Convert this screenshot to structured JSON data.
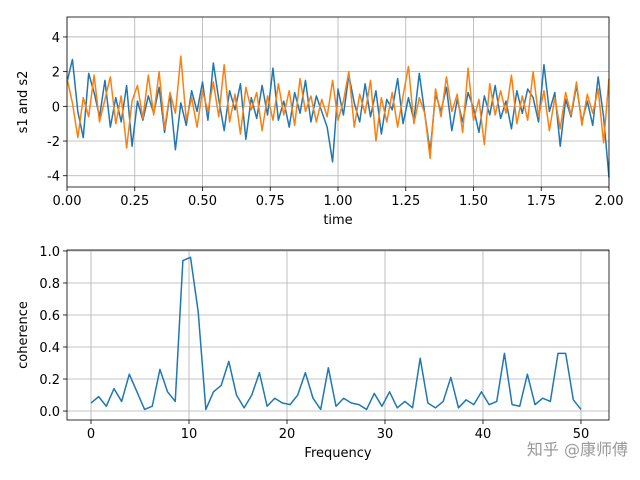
{
  "chart_data": [
    {
      "type": "line",
      "x": [
        0,
        0.02,
        0.04,
        0.06,
        0.08,
        0.1,
        0.12,
        0.14,
        0.16,
        0.18,
        0.2,
        0.22,
        0.24,
        0.26,
        0.28,
        0.3,
        0.32,
        0.34,
        0.36,
        0.38,
        0.4,
        0.42,
        0.44,
        0.46,
        0.48,
        0.5,
        0.52,
        0.54,
        0.56,
        0.58,
        0.6,
        0.62,
        0.64,
        0.66,
        0.68,
        0.7,
        0.72,
        0.74,
        0.76,
        0.78,
        0.8,
        0.82,
        0.84,
        0.86,
        0.88,
        0.9,
        0.92,
        0.94,
        0.96,
        0.98,
        1,
        1.02,
        1.04,
        1.06,
        1.08,
        1.1,
        1.12,
        1.14,
        1.16,
        1.18,
        1.2,
        1.22,
        1.24,
        1.26,
        1.28,
        1.3,
        1.32,
        1.34,
        1.36,
        1.38,
        1.4,
        1.42,
        1.44,
        1.46,
        1.48,
        1.5,
        1.52,
        1.54,
        1.56,
        1.58,
        1.6,
        1.62,
        1.64,
        1.66,
        1.68,
        1.7,
        1.72,
        1.74,
        1.76,
        1.78,
        1.8,
        1.82,
        1.84,
        1.86,
        1.88,
        1.9,
        1.92,
        1.94,
        1.96,
        1.98,
        2
      ],
      "series": [
        {
          "color": "#1f77b4",
          "values": [
            1.4,
            2.7,
            -0.3,
            -1.8,
            1.9,
            0.8,
            -0.6,
            1.5,
            -1.2,
            0.5,
            -0.9,
            1.2,
            -2.3,
            0.3,
            -0.8,
            0.6,
            -0.4,
            1.1,
            -1.5,
            0.7,
            -2.5,
            0.2,
            -1.1,
            0.9,
            -0.3,
            1.4,
            -0.8,
            2.5,
            0.4,
            -1.4,
            0.9,
            -0.2,
            1.3,
            -1.9,
            0.5,
            -0.7,
            1.2,
            -0.5,
            2.2,
            -0.8,
            0.3,
            -1.2,
            0.8,
            -0.4,
            1.5,
            -0.9,
            0.6,
            -0.3,
            -1.2,
            -3.2,
            1.0,
            -0.5,
            1.8,
            0.2,
            -0.9,
            1.3,
            -0.6,
            0.9,
            -1.6,
            0.4,
            -0.2,
            1.6,
            -1.0,
            0.5,
            -0.8,
            1.9,
            -0.4,
            -2.6,
            0.7,
            -0.3,
            1.1,
            -1.4,
            0.4,
            -0.9,
            0.8,
            -0.1,
            -1.5,
            0.6,
            -0.5,
            1.2,
            -0.7,
            0.3,
            -1.3,
            0.9,
            -0.4,
            1.0,
            0.5,
            -0.9,
            2.4,
            -0.3,
            0.8,
            -2.3,
            0.4,
            -0.6,
            1.2,
            -0.9,
            0.3,
            -1.1,
            1.7,
            -0.6,
            -4.1
          ]
        },
        {
          "color": "#ff7f0e",
          "values": [
            1.6,
            0.2,
            -1.8,
            0.5,
            -0.6,
            1.8,
            -0.9,
            0.4,
            1.7,
            -1.0,
            0.6,
            -2.4,
            0.3,
            1.2,
            -0.7,
            1.8,
            -0.5,
            2.0,
            -1.3,
            0.8,
            -0.4,
            2.9,
            -0.8,
            0.5,
            -1.2,
            0.9,
            -0.3,
            1.4,
            -0.6,
            2.4,
            -0.9,
            0.7,
            -1.6,
            1.1,
            -0.2,
            0.8,
            -1.4,
            0.6,
            -0.8,
            1.3,
            -0.5,
            0.9,
            -1.1,
            1.6,
            -0.3,
            0.6,
            -0.9,
            0.4,
            -0.6,
            1.5,
            -0.8,
            0.3,
            2.0,
            -1.2,
            0.7,
            -0.4,
            1.5,
            -2.0,
            0.5,
            -0.9,
            0.8,
            -1.2,
            0.6,
            2.3,
            -1.0,
            0.5,
            -0.4,
            -3.0,
            1.0,
            -0.6,
            1.7,
            -0.3,
            0.7,
            -1.5,
            2.2,
            -0.8,
            0.4,
            -2.2,
            1.3,
            -0.5,
            0.9,
            -0.4,
            1.8,
            -1.0,
            0.6,
            -0.8,
            2.0,
            -0.6,
            0.9,
            -1.4,
            0.5,
            -1.3,
            0.8,
            -0.5,
            1.4,
            -1.1,
            0.7,
            -0.4,
            1.0,
            -2.1,
            1.6
          ]
        }
      ],
      "xlabel": "time",
      "ylabel": "s1 and s2",
      "xlim": [
        0,
        2
      ],
      "ylim": [
        -4.65,
        5.15
      ],
      "xticks": [
        {
          "value": 0,
          "label": "0.00"
        },
        {
          "value": 0.25,
          "label": "0.25"
        },
        {
          "value": 0.5,
          "label": "0.50"
        },
        {
          "value": 0.75,
          "label": "0.75"
        },
        {
          "value": 1,
          "label": "1.00"
        },
        {
          "value": 1.25,
          "label": "1.25"
        },
        {
          "value": 1.5,
          "label": "1.50"
        },
        {
          "value": 1.75,
          "label": "1.75"
        },
        {
          "value": 2,
          "label": "2.00"
        }
      ],
      "yticks": [
        -4,
        -2,
        0,
        2,
        4
      ],
      "grid": true
    },
    {
      "type": "line",
      "x": [
        0,
        0.78125,
        1.5625,
        2.34375,
        3.125,
        3.90625,
        4.6875,
        5.46875,
        6.25,
        7.03125,
        7.8125,
        8.59375,
        9.375,
        10.15625,
        10.9375,
        11.71875,
        12.5,
        13.28125,
        14.0625,
        14.84375,
        15.625,
        16.40625,
        17.1875,
        17.96875,
        18.75,
        19.53125,
        20.3125,
        21.09375,
        21.875,
        22.65625,
        23.4375,
        24.21875,
        25,
        25.78125,
        26.5625,
        27.34375,
        28.125,
        28.90625,
        29.6875,
        30.46875,
        31.25,
        32.03125,
        32.8125,
        33.59375,
        34.375,
        35.15625,
        35.9375,
        36.71875,
        37.5,
        38.28125,
        39.0625,
        39.84375,
        40.625,
        41.40625,
        42.1875,
        42.96875,
        43.75,
        44.53125,
        45.3125,
        46.09375,
        46.875,
        47.65625,
        48.4375,
        49.21875,
        50
      ],
      "series": [
        {
          "color": "#1f77b4",
          "values": [
            0.05,
            0.09,
            0.03,
            0.14,
            0.06,
            0.23,
            0.12,
            0.01,
            0.03,
            0.26,
            0.12,
            0.06,
            0.94,
            0.96,
            0.62,
            0.01,
            0.12,
            0.16,
            0.31,
            0.1,
            0.02,
            0.1,
            0.24,
            0.03,
            0.08,
            0.05,
            0.04,
            0.1,
            0.24,
            0.08,
            0.01,
            0.27,
            0.03,
            0.08,
            0.05,
            0.04,
            0.01,
            0.11,
            0.03,
            0.12,
            0.02,
            0.06,
            0.02,
            0.33,
            0.05,
            0.02,
            0.06,
            0.21,
            0.02,
            0.07,
            0.04,
            0.12,
            0.04,
            0.06,
            0.36,
            0.04,
            0.03,
            0.23,
            0.04,
            0.08,
            0.06,
            0.36,
            0.36,
            0.07,
            0.01
          ]
        }
      ],
      "xlabel": "Frequency",
      "ylabel": "coherence",
      "xlim": [
        -2.45,
        52.86
      ],
      "ylim": [
        -0.056,
        1.006
      ],
      "xticks": [
        0,
        10,
        20,
        30,
        40,
        50
      ],
      "yticks": [
        {
          "value": 0,
          "label": "0.0"
        },
        0.2,
        0.4,
        0.6,
        0.8,
        {
          "value": 1,
          "label": "1.0"
        }
      ],
      "grid": true
    }
  ],
  "watermark": "知乎 @康师傅"
}
